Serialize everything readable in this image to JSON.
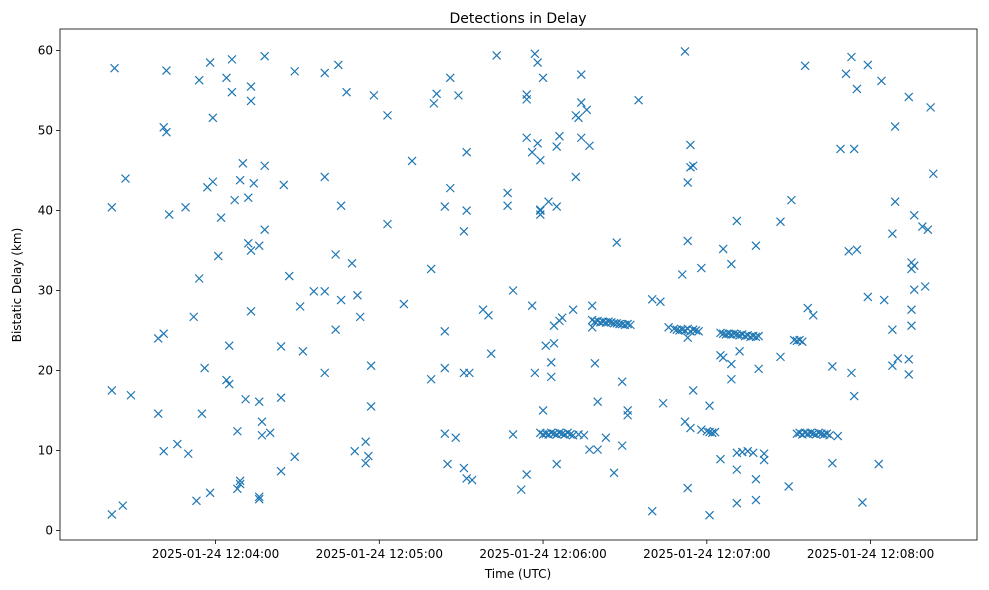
{
  "chart_data": {
    "type": "scatter",
    "title": "Detections in Delay",
    "xlabel": "Time (UTC)",
    "ylabel": "Bistatic Delay (km)",
    "x_unit": "time of day, UTC (HH:MM:SS), 2025-01-24",
    "xlim": [
      "12:03:03",
      "12:08:39"
    ],
    "ylim": [
      -1.2,
      62.7
    ],
    "x_ticks": [
      {
        "value": "12:04:00",
        "label": "2025-01-24 12:04:00"
      },
      {
        "value": "12:05:00",
        "label": "2025-01-24 12:05:00"
      },
      {
        "value": "12:06:00",
        "label": "2025-01-24 12:06:00"
      },
      {
        "value": "12:07:00",
        "label": "2025-01-24 12:07:00"
      },
      {
        "value": "12:08:00",
        "label": "2025-01-24 12:08:00"
      }
    ],
    "y_ticks": [
      0,
      10,
      20,
      30,
      40,
      50,
      60
    ],
    "grid": false,
    "marker": "x",
    "color": "#1f77b4",
    "points": [
      [
        "12:03:22",
        2.0
      ],
      [
        "12:03:22",
        17.5
      ],
      [
        "12:03:22",
        40.4
      ],
      [
        "12:03:23",
        57.8
      ],
      [
        "12:03:26",
        3.1
      ],
      [
        "12:03:27",
        44.0
      ],
      [
        "12:03:29",
        16.9
      ],
      [
        "12:03:39",
        14.6
      ],
      [
        "12:03:39",
        24.0
      ],
      [
        "12:03:41",
        9.9
      ],
      [
        "12:03:41",
        24.6
      ],
      [
        "12:03:41",
        50.4
      ],
      [
        "12:03:42",
        57.5
      ],
      [
        "12:03:42",
        49.8
      ],
      [
        "12:03:43",
        39.5
      ],
      [
        "12:03:46",
        10.8
      ],
      [
        "12:03:49",
        40.4
      ],
      [
        "12:03:50",
        9.6
      ],
      [
        "12:03:52",
        26.7
      ],
      [
        "12:03:53",
        3.7
      ],
      [
        "12:03:54",
        31.5
      ],
      [
        "12:03:54",
        56.3
      ],
      [
        "12:03:55",
        14.6
      ],
      [
        "12:03:56",
        20.3
      ],
      [
        "12:03:57",
        42.9
      ],
      [
        "12:03:58",
        4.7
      ],
      [
        "12:03:58",
        58.5
      ],
      [
        "12:03:59",
        43.6
      ],
      [
        "12:03:59",
        51.6
      ],
      [
        "12:04:01",
        34.3
      ],
      [
        "12:04:02",
        39.1
      ],
      [
        "12:04:04",
        18.8
      ],
      [
        "12:04:04",
        56.6
      ],
      [
        "12:04:05",
        23.1
      ],
      [
        "12:04:05",
        18.3
      ],
      [
        "12:04:06",
        54.8
      ],
      [
        "12:04:06",
        58.9
      ],
      [
        "12:04:07",
        41.3
      ],
      [
        "12:04:08",
        12.4
      ],
      [
        "12:04:08",
        5.2
      ],
      [
        "12:04:09",
        43.8
      ],
      [
        "12:04:09",
        6.2
      ],
      [
        "12:04:09",
        5.8
      ],
      [
        "12:04:10",
        45.9
      ],
      [
        "12:04:11",
        16.4
      ],
      [
        "12:04:12",
        41.6
      ],
      [
        "12:04:12",
        35.9
      ],
      [
        "12:04:13",
        27.4
      ],
      [
        "12:04:13",
        53.7
      ],
      [
        "12:04:13",
        55.5
      ],
      [
        "12:04:13",
        35.0
      ],
      [
        "12:04:14",
        43.4
      ],
      [
        "12:04:16",
        4.2
      ],
      [
        "12:04:16",
        3.9
      ],
      [
        "12:04:16",
        16.1
      ],
      [
        "12:04:16",
        35.6
      ],
      [
        "12:04:17",
        13.6
      ],
      [
        "12:04:17",
        11.9
      ],
      [
        "12:04:18",
        37.6
      ],
      [
        "12:04:18",
        45.6
      ],
      [
        "12:04:18",
        59.3
      ],
      [
        "12:04:20",
        12.2
      ],
      [
        "12:04:24",
        7.4
      ],
      [
        "12:04:24",
        23.0
      ],
      [
        "12:04:24",
        16.6
      ],
      [
        "12:04:25",
        43.2
      ],
      [
        "12:04:27",
        31.8
      ],
      [
        "12:04:29",
        9.2
      ],
      [
        "12:04:29",
        57.4
      ],
      [
        "12:04:31",
        28.0
      ],
      [
        "12:04:32",
        22.4
      ],
      [
        "12:04:36",
        29.9
      ],
      [
        "12:04:40",
        29.9
      ],
      [
        "12:04:40",
        57.2
      ],
      [
        "12:04:40",
        44.2
      ],
      [
        "12:04:40",
        19.7
      ],
      [
        "12:04:44",
        25.1
      ],
      [
        "12:04:44",
        34.5
      ],
      [
        "12:04:45",
        58.2
      ],
      [
        "12:04:46",
        40.6
      ],
      [
        "12:04:46",
        28.8
      ],
      [
        "12:04:48",
        54.8
      ],
      [
        "12:04:50",
        33.4
      ],
      [
        "12:04:51",
        9.9
      ],
      [
        "12:04:52",
        29.4
      ],
      [
        "12:04:53",
        26.7
      ],
      [
        "12:04:55",
        11.1
      ],
      [
        "12:04:55",
        8.4
      ],
      [
        "12:04:56",
        9.3
      ],
      [
        "12:04:57",
        15.5
      ],
      [
        "12:04:57",
        20.6
      ],
      [
        "12:04:58",
        54.4
      ],
      [
        "12:05:03",
        51.9
      ],
      [
        "12:05:03",
        38.3
      ],
      [
        "12:05:09",
        28.3
      ],
      [
        "12:05:12",
        46.2
      ],
      [
        "12:05:19",
        32.7
      ],
      [
        "12:05:19",
        18.9
      ],
      [
        "12:05:20",
        53.4
      ],
      [
        "12:05:21",
        54.6
      ],
      [
        "12:05:24",
        12.1
      ],
      [
        "12:05:24",
        40.5
      ],
      [
        "12:05:24",
        24.9
      ],
      [
        "12:05:24",
        20.3
      ],
      [
        "12:05:25",
        8.3
      ],
      [
        "12:05:26",
        42.8
      ],
      [
        "12:05:26",
        56.6
      ],
      [
        "12:05:28",
        11.6
      ],
      [
        "12:05:29",
        54.4
      ],
      [
        "12:05:31",
        19.7
      ],
      [
        "12:05:31",
        37.4
      ],
      [
        "12:05:31",
        7.8
      ],
      [
        "12:05:32",
        40.0
      ],
      [
        "12:05:32",
        47.3
      ],
      [
        "12:05:32",
        6.5
      ],
      [
        "12:05:33",
        19.7
      ],
      [
        "12:05:34",
        6.3
      ],
      [
        "12:05:38",
        27.6
      ],
      [
        "12:05:40",
        26.9
      ],
      [
        "12:05:41",
        22.1
      ],
      [
        "12:05:43",
        59.4
      ],
      [
        "12:05:47",
        42.2
      ],
      [
        "12:05:47",
        40.6
      ],
      [
        "12:05:49",
        30.0
      ],
      [
        "12:05:49",
        12.0
      ],
      [
        "12:05:52",
        5.1
      ],
      [
        "12:05:54",
        7.0
      ],
      [
        "12:05:54",
        54.5
      ],
      [
        "12:05:54",
        53.9
      ],
      [
        "12:05:54",
        49.1
      ],
      [
        "12:05:56",
        47.3
      ],
      [
        "12:05:56",
        28.1
      ],
      [
        "12:05:57",
        19.7
      ],
      [
        "12:05:57",
        59.6
      ],
      [
        "12:05:58",
        58.5
      ],
      [
        "12:05:58",
        48.4
      ],
      [
        "12:05:59",
        40.0
      ],
      [
        "12:05:59",
        39.5
      ],
      [
        "12:05:59",
        40.1
      ],
      [
        "12:05:59",
        46.3
      ],
      [
        "12:06:00",
        56.6
      ],
      [
        "12:06:00",
        15.0
      ],
      [
        "12:06:01",
        23.1
      ],
      [
        "12:06:02",
        41.1
      ],
      [
        "12:06:03",
        19.2
      ],
      [
        "12:06:03",
        21.0
      ],
      [
        "12:06:04",
        23.4
      ],
      [
        "12:06:04",
        25.6
      ],
      [
        "12:06:05",
        40.5
      ],
      [
        "12:06:05",
        8.3
      ],
      [
        "12:06:05",
        48.0
      ],
      [
        "12:06:06",
        49.3
      ],
      [
        "12:06:06",
        26.2
      ],
      [
        "12:06:07",
        26.6
      ],
      [
        "12:06:11",
        27.6
      ],
      [
        "12:06:12",
        51.9
      ],
      [
        "12:06:12",
        44.2
      ],
      [
        "12:06:13",
        51.6
      ],
      [
        "12:06:14",
        57.0
      ],
      [
        "12:06:14",
        53.5
      ],
      [
        "12:06:14",
        49.1
      ],
      [
        "12:06:16",
        52.6
      ],
      [
        "12:06:17",
        48.1
      ],
      [
        "12:06:17",
        10.1
      ],
      [
        "12:06:18",
        28.1
      ],
      [
        "12:06:18",
        25.4
      ],
      [
        "12:06:19",
        20.9
      ],
      [
        "12:06:20",
        10.1
      ],
      [
        "12:06:20",
        16.1
      ],
      [
        "12:06:23",
        11.6
      ],
      [
        "12:06:26",
        7.2
      ],
      [
        "12:06:27",
        36.0
      ],
      [
        "12:06:29",
        10.6
      ],
      [
        "12:06:29",
        18.6
      ],
      [
        "12:06:31",
        14.4
      ],
      [
        "12:06:31",
        15.0
      ],
      [
        "12:06:35",
        53.8
      ],
      [
        "12:05:59",
        12.2
      ],
      [
        "12:06:00",
        12.0
      ],
      [
        "12:06:01",
        12.1
      ],
      [
        "12:06:02",
        12.0
      ],
      [
        "12:06:03",
        12.2
      ],
      [
        "12:06:04",
        12.1
      ],
      [
        "12:06:05",
        12.0
      ],
      [
        "12:06:06",
        12.2
      ],
      [
        "12:06:07",
        12.1
      ],
      [
        "12:06:08",
        12.0
      ],
      [
        "12:06:09",
        12.2
      ],
      [
        "12:06:10",
        12.0
      ],
      [
        "12:06:11",
        11.9
      ],
      [
        "12:06:13",
        12.0
      ],
      [
        "12:06:15",
        11.9
      ],
      [
        "12:06:18",
        26.3
      ],
      [
        "12:06:19",
        26.1
      ],
      [
        "12:06:20",
        26.2
      ],
      [
        "12:06:21",
        26.0
      ],
      [
        "12:06:22",
        26.1
      ],
      [
        "12:06:23",
        26.0
      ],
      [
        "12:06:24",
        26.1
      ],
      [
        "12:06:25",
        26.0
      ],
      [
        "12:06:26",
        25.9
      ],
      [
        "12:06:27",
        25.9
      ],
      [
        "12:06:28",
        25.8
      ],
      [
        "12:06:29",
        25.8
      ],
      [
        "12:06:30",
        25.7
      ],
      [
        "12:06:31",
        25.8
      ],
      [
        "12:06:32",
        25.7
      ],
      [
        "12:06:40",
        2.4
      ],
      [
        "12:06:40",
        28.9
      ],
      [
        "12:06:43",
        28.6
      ],
      [
        "12:06:44",
        15.9
      ],
      [
        "12:06:46",
        25.4
      ],
      [
        "12:06:51",
        32.0
      ],
      [
        "12:06:52",
        13.6
      ],
      [
        "12:06:52",
        59.9
      ],
      [
        "12:06:53",
        5.3
      ],
      [
        "12:06:53",
        43.5
      ],
      [
        "12:06:53",
        36.2
      ],
      [
        "12:06:53",
        24.1
      ],
      [
        "12:06:54",
        48.2
      ],
      [
        "12:06:54",
        45.4
      ],
      [
        "12:06:54",
        12.8
      ],
      [
        "12:06:55",
        45.6
      ],
      [
        "12:06:55",
        17.5
      ],
      [
        "12:06:58",
        12.6
      ],
      [
        "12:06:58",
        32.8
      ],
      [
        "12:07:01",
        12.3
      ],
      [
        "12:07:01",
        15.6
      ],
      [
        "12:07:01",
        1.9
      ],
      [
        "12:06:48",
        25.2
      ],
      [
        "12:06:49",
        25.1
      ],
      [
        "12:06:50",
        25.0
      ],
      [
        "12:06:51",
        25.1
      ],
      [
        "12:06:52",
        25.0
      ],
      [
        "12:06:53",
        25.2
      ],
      [
        "12:06:54",
        24.9
      ],
      [
        "12:06:55",
        25.1
      ],
      [
        "12:06:56",
        25.0
      ],
      [
        "12:06:57",
        24.9
      ],
      [
        "12:07:00",
        12.4
      ],
      [
        "12:07:02",
        12.2
      ],
      [
        "12:07:03",
        12.3
      ],
      [
        "12:07:05",
        8.9
      ],
      [
        "12:07:05",
        21.9
      ],
      [
        "12:07:06",
        35.2
      ],
      [
        "12:07:06",
        21.6
      ],
      [
        "12:07:09",
        33.3
      ],
      [
        "12:07:09",
        20.8
      ],
      [
        "12:07:09",
        18.9
      ],
      [
        "12:07:11",
        38.7
      ],
      [
        "12:07:11",
        3.4
      ],
      [
        "12:07:11",
        7.6
      ],
      [
        "12:07:11",
        9.7
      ],
      [
        "12:07:12",
        22.4
      ],
      [
        "12:07:13",
        9.8
      ],
      [
        "12:07:15",
        9.9
      ],
      [
        "12:07:17",
        9.7
      ],
      [
        "12:07:18",
        3.8
      ],
      [
        "12:07:18",
        6.4
      ],
      [
        "12:07:18",
        35.6
      ],
      [
        "12:07:19",
        20.2
      ],
      [
        "12:07:21",
        8.8
      ],
      [
        "12:07:21",
        9.6
      ],
      [
        "12:07:27",
        38.6
      ],
      [
        "12:07:27",
        21.7
      ],
      [
        "12:07:30",
        5.5
      ],
      [
        "12:07:31",
        41.3
      ],
      [
        "12:07:05",
        24.7
      ],
      [
        "12:07:06",
        24.6
      ],
      [
        "12:07:07",
        24.5
      ],
      [
        "12:07:08",
        24.6
      ],
      [
        "12:07:09",
        24.5
      ],
      [
        "12:07:10",
        24.6
      ],
      [
        "12:07:11",
        24.5
      ],
      [
        "12:07:12",
        24.4
      ],
      [
        "12:07:13",
        24.5
      ],
      [
        "12:07:14",
        24.3
      ],
      [
        "12:07:15",
        24.4
      ],
      [
        "12:07:16",
        24.2
      ],
      [
        "12:07:17",
        24.3
      ],
      [
        "12:07:18",
        24.2
      ],
      [
        "12:07:19",
        24.3
      ],
      [
        "12:07:32",
        23.8
      ],
      [
        "12:07:33",
        23.7
      ],
      [
        "12:07:34",
        23.8
      ],
      [
        "12:07:35",
        23.6
      ],
      [
        "12:07:36",
        58.1
      ],
      [
        "12:07:37",
        27.8
      ],
      [
        "12:07:39",
        26.9
      ],
      [
        "12:07:33",
        12.1
      ],
      [
        "12:07:34",
        12.2
      ],
      [
        "12:07:35",
        12.0
      ],
      [
        "12:07:36",
        12.2
      ],
      [
        "12:07:37",
        12.1
      ],
      [
        "12:07:38",
        12.2
      ],
      [
        "12:07:39",
        12.1
      ],
      [
        "12:07:40",
        12.0
      ],
      [
        "12:07:41",
        12.2
      ],
      [
        "12:07:42",
        12.1
      ],
      [
        "12:07:43",
        12.0
      ],
      [
        "12:07:44",
        12.1
      ],
      [
        "12:07:45",
        11.9
      ],
      [
        "12:07:48",
        11.8
      ],
      [
        "12:07:46",
        20.5
      ],
      [
        "12:07:46",
        8.4
      ],
      [
        "12:07:49",
        47.7
      ],
      [
        "12:07:51",
        57.1
      ],
      [
        "12:07:52",
        34.9
      ],
      [
        "12:07:53",
        19.7
      ],
      [
        "12:07:53",
        59.2
      ],
      [
        "12:07:54",
        47.7
      ],
      [
        "12:07:54",
        16.8
      ],
      [
        "12:07:55",
        55.2
      ],
      [
        "12:07:55",
        35.1
      ],
      [
        "12:07:57",
        3.5
      ],
      [
        "12:07:59",
        58.2
      ],
      [
        "12:07:59",
        29.2
      ],
      [
        "12:08:03",
        8.3
      ],
      [
        "12:08:04",
        56.2
      ],
      [
        "12:08:05",
        28.8
      ],
      [
        "12:08:08",
        37.1
      ],
      [
        "12:08:08",
        25.1
      ],
      [
        "12:08:08",
        20.6
      ],
      [
        "12:08:09",
        50.5
      ],
      [
        "12:08:09",
        41.1
      ],
      [
        "12:08:10",
        21.5
      ],
      [
        "12:08:14",
        54.2
      ],
      [
        "12:08:14",
        21.4
      ],
      [
        "12:08:14",
        19.5
      ],
      [
        "12:08:15",
        25.6
      ],
      [
        "12:08:15",
        27.6
      ],
      [
        "12:08:15",
        33.5
      ],
      [
        "12:08:15",
        32.7
      ],
      [
        "12:08:16",
        39.4
      ],
      [
        "12:08:16",
        33.1
      ],
      [
        "12:08:16",
        30.1
      ],
      [
        "12:08:19",
        38.0
      ],
      [
        "12:08:20",
        30.5
      ],
      [
        "12:08:21",
        37.6
      ],
      [
        "12:08:22",
        52.9
      ],
      [
        "12:08:23",
        44.6
      ]
    ]
  }
}
